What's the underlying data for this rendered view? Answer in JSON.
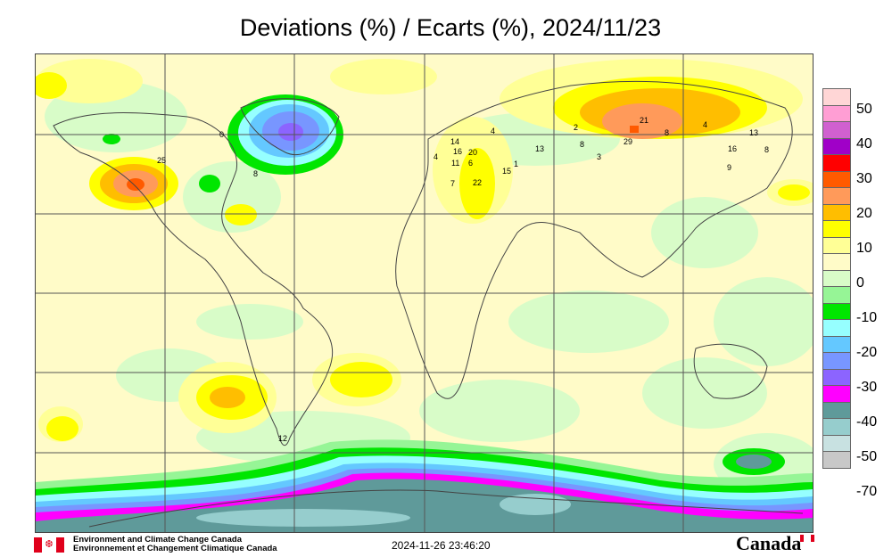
{
  "title": "Deviations (%) / Ecarts (%), 2024/11/23",
  "footer": {
    "agency_en": "Environment and Climate Change Canada",
    "agency_fr": "Environnement et Changement Climatique Canada",
    "timestamp": "2024-11-26 23:46:20",
    "wordmark": "Canada"
  },
  "legend": {
    "labels": [
      "50",
      "40",
      "30",
      "20",
      "10",
      "0",
      "-10",
      "-20",
      "-30",
      "-40",
      "-50",
      "-70"
    ],
    "colors": [
      "#ffd6d6",
      "#ff9ed4",
      "#d060d0",
      "#a000c8",
      "#ff0000",
      "#ff5a00",
      "#ff9a5a",
      "#ffbe00",
      "#ffff00",
      "#ffff96",
      "#fffbc8",
      "#d8fcc8",
      "#96f596",
      "#00e600",
      "#96ffff",
      "#64c8ff",
      "#7896ff",
      "#8c64ff",
      "#ff00ff",
      "#5f9a9a",
      "#96cdcd",
      "#c8e1e1",
      "#c8c8c8"
    ]
  },
  "station_labels": [
    "0",
    "25",
    "8",
    "4",
    "14",
    "16",
    "20",
    "11",
    "13",
    "4",
    "2",
    "8",
    "3",
    "21",
    "29",
    "8",
    "4",
    "13",
    "16",
    "8",
    "22",
    "15",
    "1",
    "7",
    "6",
    "9",
    "12"
  ],
  "colors": {
    "background_zero": "#fffbc8",
    "positive_10": "#ffff00",
    "positive_20": "#ffbe00",
    "positive_30": "#ff5a00",
    "negative_10": "#96f596",
    "negative_20": "#00e600",
    "negative_30": "#64c8ff",
    "negative_40": "#ff00ff",
    "negative_50": "#5f9a9a"
  }
}
